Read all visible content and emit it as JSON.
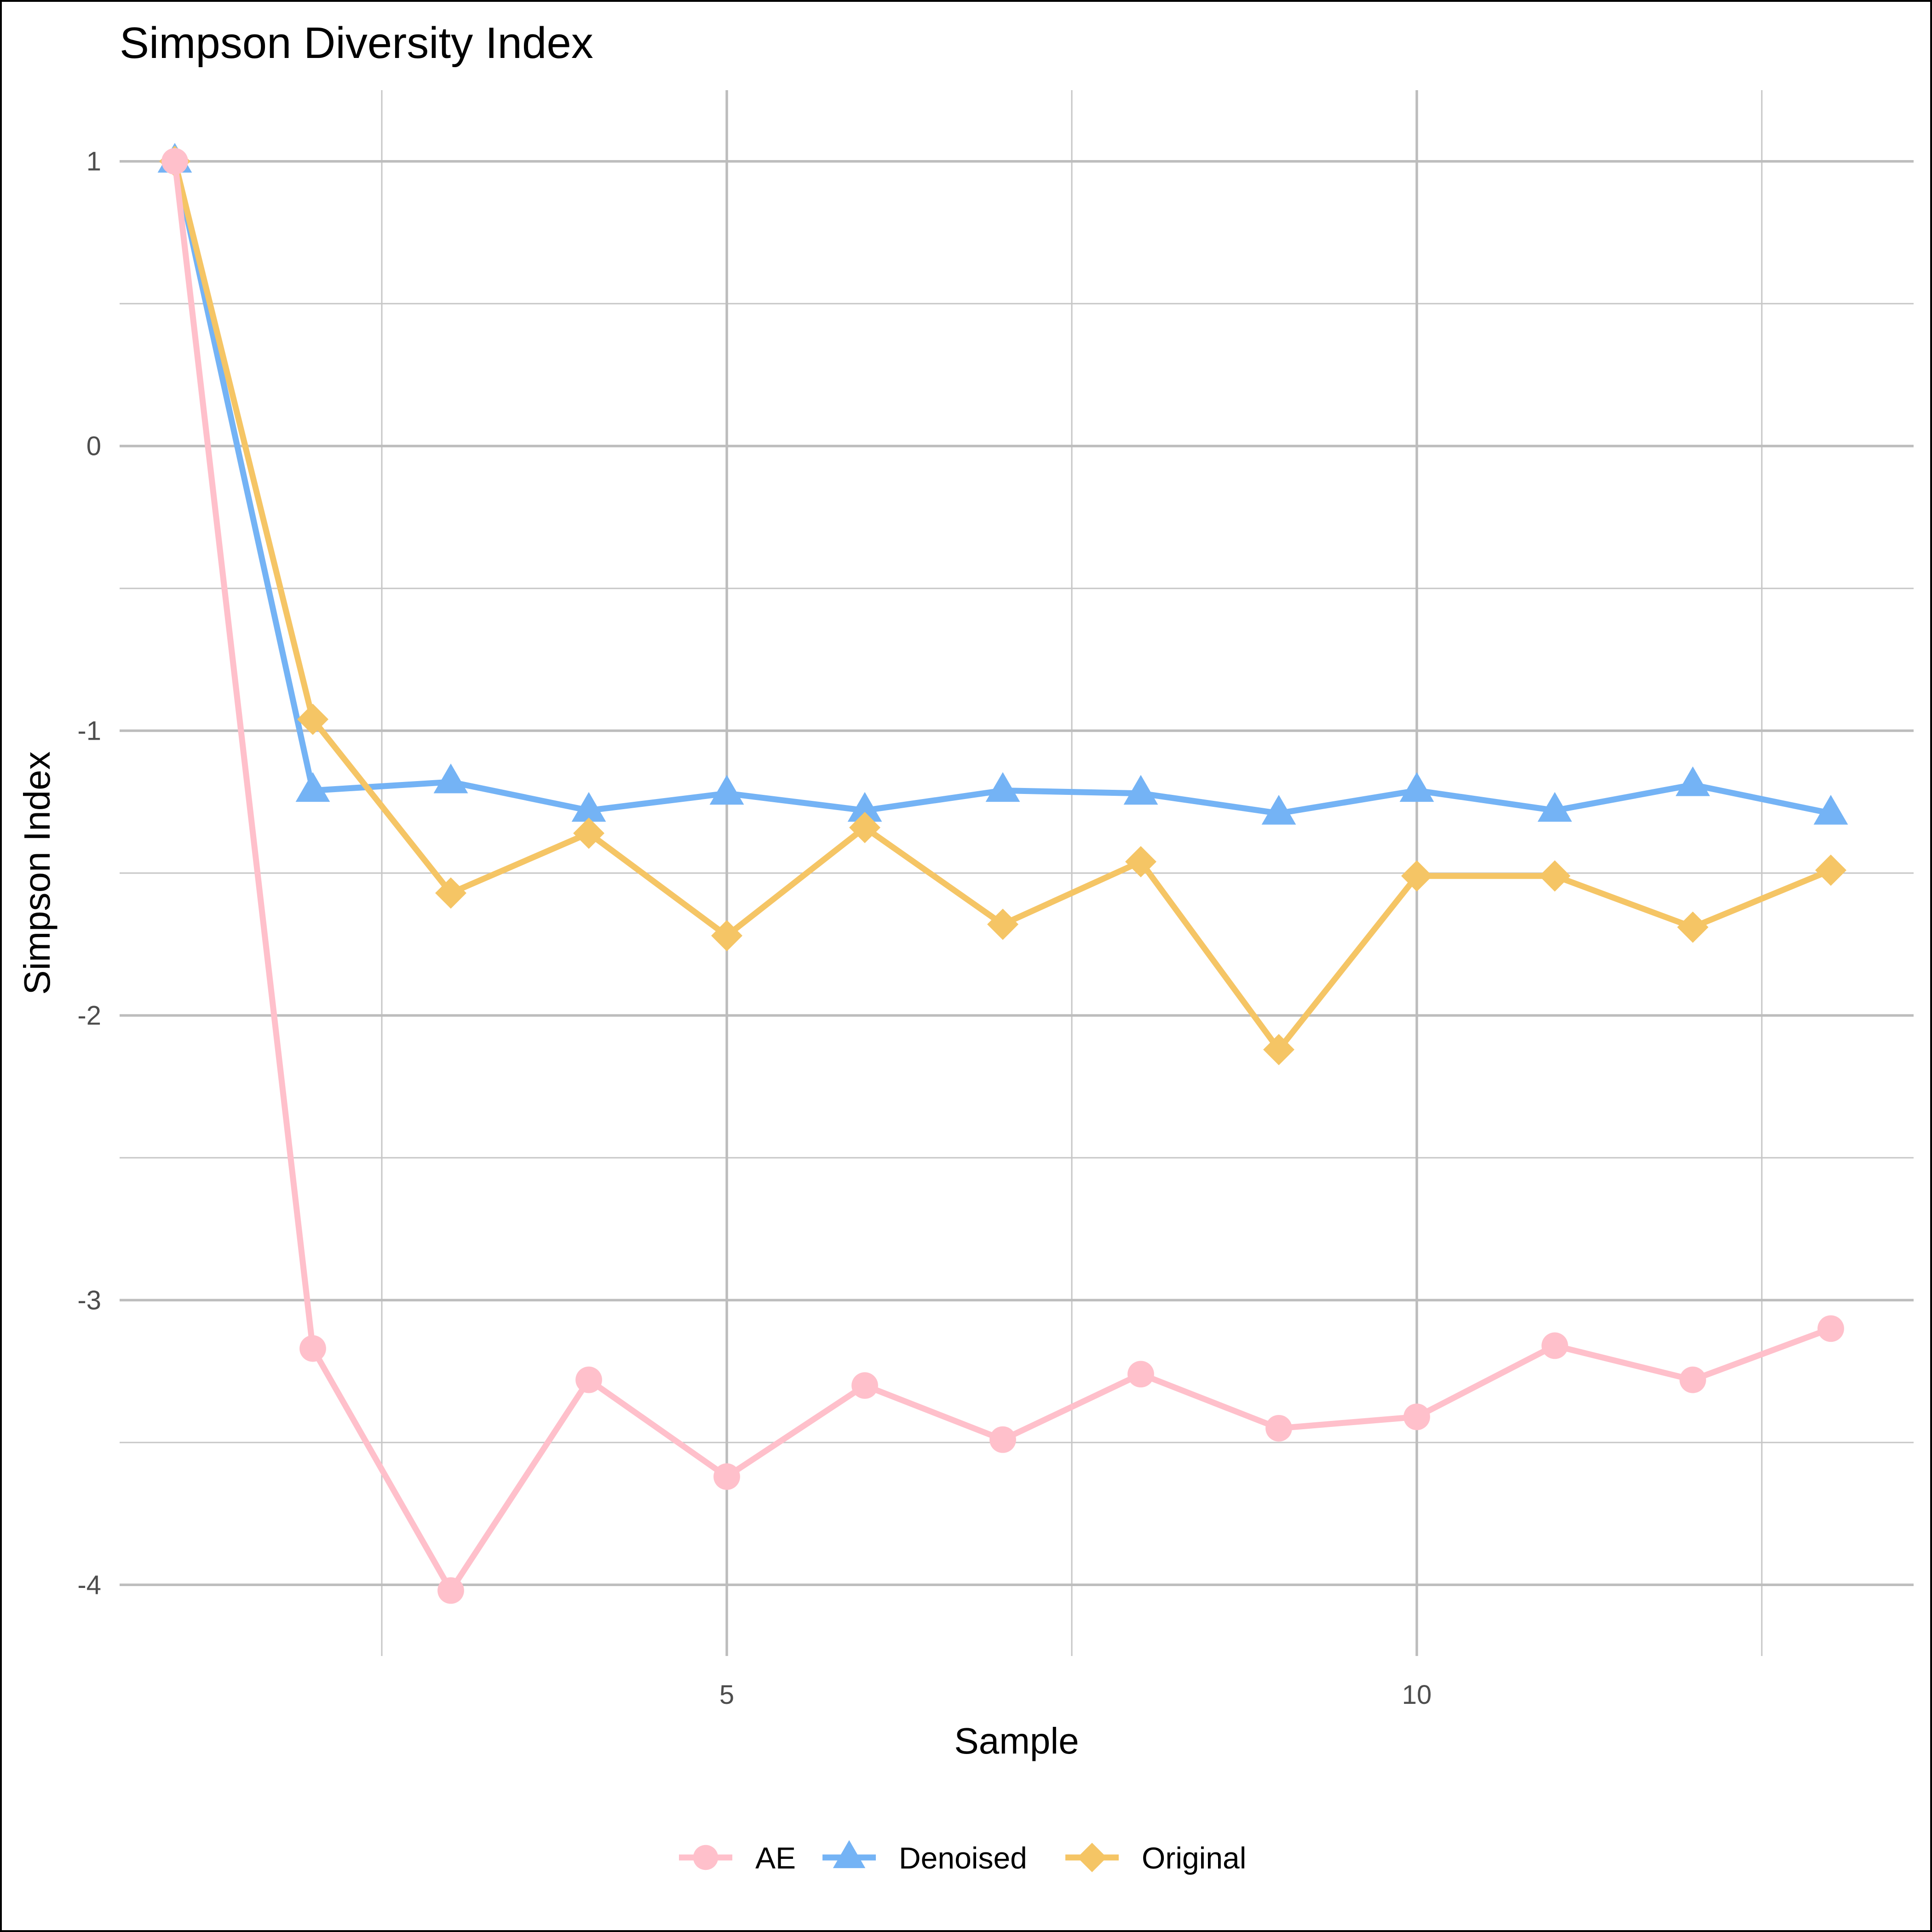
{
  "chart_data": {
    "type": "line",
    "title": "Simpson Diversity Index",
    "xlabel": "Sample",
    "ylabel": "Simpson Index",
    "xlim": [
      0.6,
      13.6
    ],
    "ylim": [
      -4.25,
      1.25
    ],
    "x_ticks": [
      5,
      10
    ],
    "x_tick_labels": [
      "5",
      "10"
    ],
    "x_minor_ticks": [
      2.5,
      7.5,
      12.5
    ],
    "y_ticks": [
      1,
      0,
      -1,
      -2,
      -3,
      -4
    ],
    "y_tick_labels": [
      "1",
      "0",
      "-1",
      "-2",
      "-3",
      "-4"
    ],
    "y_minor_ticks": [
      0.5,
      -0.5,
      -1.5,
      -2.5,
      -3.5
    ],
    "grid": true,
    "legend_position": "bottom",
    "x": [
      1,
      2,
      3,
      4,
      5,
      6,
      7,
      8,
      9,
      10,
      11,
      12,
      13
    ],
    "series": [
      {
        "name": "Denoised",
        "color": "#74b3f5",
        "marker": "triangle",
        "values": [
          1.0,
          -1.21,
          -1.18,
          -1.28,
          -1.22,
          -1.28,
          -1.21,
          -1.22,
          -1.29,
          -1.21,
          -1.28,
          -1.19,
          -1.29
        ]
      },
      {
        "name": "Original",
        "color": "#f5c565",
        "marker": "diamond",
        "values": [
          1.0,
          -0.96,
          -1.57,
          -1.36,
          -1.72,
          -1.34,
          -1.68,
          -1.46,
          -2.12,
          -1.51,
          -1.51,
          -1.69,
          -1.49
        ]
      },
      {
        "name": "AE",
        "color": "#ffc0cb",
        "marker": "circle",
        "values": [
          1.0,
          -3.17,
          -4.02,
          -3.28,
          -3.62,
          -3.3,
          -3.49,
          -3.26,
          -3.45,
          -3.41,
          -3.16,
          -3.28,
          -3.1
        ]
      }
    ],
    "legend_order": [
      "AE",
      "Denoised",
      "Original"
    ]
  }
}
